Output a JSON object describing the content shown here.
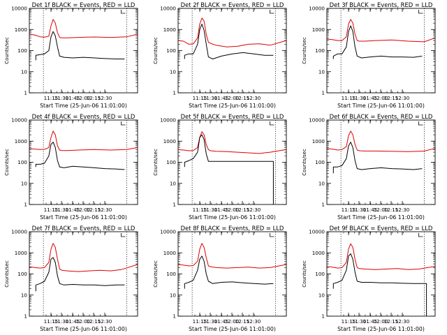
{
  "figure": {
    "background": "#ffffff",
    "line_colors": {
      "events": "#000000",
      "lld": "#dd0000"
    }
  },
  "chart_data": [
    {
      "type": "line",
      "title": "Det 1f BLACK = Events, RED = LLD",
      "xlabel": "Start Time (25-Jun-06 11:01:00)",
      "ylabel": "Counts/sec",
      "xticks": [
        "11:15",
        "11:30",
        "11:45",
        "12:00",
        "12:15",
        "12:30"
      ],
      "yticks": [
        "1",
        "10",
        "100",
        "1000",
        "10000"
      ],
      "xlim": [
        0,
        100
      ],
      "ylim": [
        1,
        10000
      ],
      "yscale": "log",
      "grid": false,
      "vlines": [
        13,
        90
      ],
      "series": [
        {
          "name": "LLD",
          "color": "#dd0000",
          "x": [
            0,
            5,
            10,
            14,
            18,
            20,
            22,
            24,
            26,
            28,
            30,
            35,
            45,
            60,
            75,
            90,
            100
          ],
          "y": [
            600,
            550,
            450,
            430,
            480,
            1500,
            3000,
            2000,
            700,
            420,
            400,
            400,
            420,
            440,
            420,
            450,
            600
          ]
        },
        {
          "name": "Events",
          "color": "#000000",
          "x": [
            6,
            6,
            10,
            14,
            18,
            20,
            22,
            24,
            26,
            28,
            32,
            40,
            50,
            60,
            70,
            80,
            88
          ],
          "y": [
            35,
            60,
            65,
            70,
            100,
            450,
            800,
            500,
            150,
            55,
            48,
            45,
            48,
            45,
            42,
            40,
            40
          ]
        }
      ]
    },
    {
      "type": "line",
      "title": "Det 2f BLACK = Events, RED = LLD",
      "xlabel": "Start Time (25-Jun-06 11:01:00)",
      "ylabel": "Counts/sec",
      "xticks": [
        "11:15",
        "11:30",
        "11:45",
        "12:00",
        "12:15",
        "12:30"
      ],
      "yticks": [
        "1",
        "10",
        "100",
        "1000",
        "10000"
      ],
      "xlim": [
        0,
        100
      ],
      "ylim": [
        1,
        10000
      ],
      "yscale": "log",
      "grid": false,
      "vlines": [
        13,
        90
      ],
      "series": [
        {
          "name": "LLD",
          "color": "#dd0000",
          "x": [
            0,
            5,
            10,
            14,
            18,
            20,
            22,
            24,
            26,
            28,
            30,
            35,
            45,
            55,
            65,
            75,
            85,
            100
          ],
          "y": [
            300,
            280,
            200,
            210,
            400,
            1800,
            3500,
            2500,
            600,
            250,
            220,
            180,
            150,
            160,
            200,
            210,
            180,
            300
          ]
        },
        {
          "name": "Events",
          "color": "#000000",
          "x": [
            6,
            6,
            10,
            14,
            18,
            20,
            22,
            24,
            26,
            28,
            32,
            40,
            50,
            60,
            70,
            80,
            88
          ],
          "y": [
            40,
            60,
            70,
            70,
            200,
            1000,
            1800,
            900,
            200,
            50,
            40,
            55,
            70,
            80,
            70,
            60,
            60
          ]
        }
      ]
    },
    {
      "type": "line",
      "title": "Det 3f BLACK = Events, RED = LLD",
      "xlabel": "Start Time (25-Jun-06 11:01:00)",
      "ylabel": "Counts/sec",
      "xticks": [
        "11:15",
        "11:30",
        "11:45",
        "12:00",
        "12:15",
        "12:30"
      ],
      "yticks": [
        "1",
        "10",
        "100",
        "1000",
        "10000"
      ],
      "xlim": [
        0,
        100
      ],
      "ylim": [
        1,
        10000
      ],
      "yscale": "log",
      "grid": false,
      "vlines": [
        13,
        90
      ],
      "series": [
        {
          "name": "LLD",
          "color": "#dd0000",
          "x": [
            0,
            5,
            10,
            14,
            18,
            20,
            22,
            24,
            26,
            28,
            30,
            35,
            45,
            60,
            75,
            90,
            100
          ],
          "y": [
            350,
            330,
            300,
            300,
            450,
            1800,
            3000,
            2000,
            600,
            300,
            280,
            280,
            300,
            320,
            280,
            260,
            400
          ]
        },
        {
          "name": "Events",
          "color": "#000000",
          "x": [
            6,
            6,
            10,
            14,
            18,
            20,
            22,
            24,
            26,
            28,
            32,
            40,
            50,
            60,
            70,
            80,
            88
          ],
          "y": [
            40,
            55,
            70,
            70,
            150,
            800,
            1500,
            800,
            150,
            55,
            45,
            50,
            55,
            50,
            50,
            48,
            55
          ]
        }
      ]
    },
    {
      "type": "line",
      "title": "Det 4f BLACK = Events, RED = LLD",
      "xlabel": "Start Time (25-Jun-06 11:01:00)",
      "ylabel": "Counts/sec",
      "xticks": [
        "11:15",
        "11:30",
        "11:45",
        "12:00",
        "12:15",
        "12:30"
      ],
      "yticks": [
        "1",
        "10",
        "100",
        "1000",
        "10000"
      ],
      "xlim": [
        0,
        100
      ],
      "ylim": [
        1,
        10000
      ],
      "yscale": "log",
      "grid": false,
      "vlines": [
        13,
        90
      ],
      "series": [
        {
          "name": "LLD",
          "color": "#dd0000",
          "x": [
            0,
            5,
            10,
            14,
            18,
            20,
            22,
            24,
            26,
            28,
            30,
            35,
            45,
            60,
            75,
            90,
            100
          ],
          "y": [
            450,
            420,
            400,
            410,
            500,
            1500,
            3000,
            2000,
            600,
            380,
            360,
            360,
            380,
            400,
            380,
            400,
            500
          ]
        },
        {
          "name": "Events",
          "color": "#000000",
          "x": [
            6,
            6,
            10,
            14,
            18,
            20,
            22,
            24,
            26,
            28,
            32,
            40,
            50,
            60,
            70,
            80,
            88
          ],
          "y": [
            60,
            80,
            80,
            90,
            200,
            700,
            900,
            500,
            120,
            60,
            55,
            65,
            60,
            55,
            50,
            48,
            45
          ]
        }
      ]
    },
    {
      "type": "line",
      "title": "Det 5f BLACK = Events, RED = LLD",
      "xlabel": "Start Time (25-Jun-06 11:01:00)",
      "ylabel": "Counts/sec",
      "xticks": [
        "11:15",
        "11:30",
        "11:45",
        "12:00",
        "12:15",
        "12:30"
      ],
      "yticks": [
        "1",
        "10",
        "100",
        "1000",
        "10000"
      ],
      "xlim": [
        0,
        100
      ],
      "ylim": [
        1,
        10000
      ],
      "yscale": "log",
      "grid": false,
      "vlines": [
        13,
        90
      ],
      "series": [
        {
          "name": "LLD",
          "color": "#dd0000",
          "x": [
            0,
            5,
            10,
            14,
            18,
            20,
            22,
            24,
            26,
            28,
            30,
            35,
            45,
            55,
            65,
            75,
            85,
            100
          ],
          "y": [
            400,
            380,
            350,
            360,
            500,
            1500,
            2800,
            2000,
            700,
            400,
            350,
            330,
            320,
            300,
            280,
            260,
            300,
            400
          ]
        },
        {
          "name": "Events",
          "color": "#000000",
          "x": [
            6,
            6,
            10,
            14,
            18,
            20,
            22,
            24,
            26,
            28,
            32,
            40,
            50,
            60,
            70,
            80,
            88,
            88
          ],
          "y": [
            60,
            100,
            120,
            150,
            300,
            1500,
            2000,
            1200,
            250,
            110,
            110,
            110,
            110,
            110,
            110,
            110,
            110,
            1
          ]
        }
      ]
    },
    {
      "type": "line",
      "title": "Det 6f BLACK = Events, RED = LLD",
      "xlabel": "Start Time (25-Jun-06 11:01:00)",
      "ylabel": "Counts/sec",
      "xticks": [
        "11:15",
        "11:30",
        "11:45",
        "12:00",
        "12:15",
        "12:30"
      ],
      "yticks": [
        "1",
        "10",
        "100",
        "1000",
        "10000"
      ],
      "xlim": [
        0,
        100
      ],
      "ylim": [
        1,
        10000
      ],
      "yscale": "log",
      "grid": false,
      "vlines": [
        13,
        90
      ],
      "series": [
        {
          "name": "LLD",
          "color": "#dd0000",
          "x": [
            0,
            5,
            10,
            14,
            18,
            20,
            22,
            24,
            26,
            28,
            30,
            35,
            45,
            60,
            75,
            90,
            100
          ],
          "y": [
            450,
            420,
            380,
            400,
            550,
            1800,
            3000,
            2000,
            700,
            380,
            350,
            340,
            340,
            330,
            320,
            340,
            450
          ]
        },
        {
          "name": "Events",
          "color": "#000000",
          "x": [
            6,
            6,
            10,
            14,
            18,
            20,
            22,
            24,
            26,
            28,
            32,
            40,
            50,
            60,
            70,
            80,
            88
          ],
          "y": [
            30,
            60,
            60,
            70,
            150,
            600,
            900,
            500,
            120,
            50,
            45,
            50,
            55,
            50,
            48,
            45,
            50
          ]
        }
      ]
    },
    {
      "type": "line",
      "title": "Det 7f BLACK = Events, RED = LLD",
      "xlabel": "Start Time (25-Jun-06 11:01:00)",
      "ylabel": "Counts/sec",
      "xticks": [
        "11:15",
        "11:30",
        "11:45",
        "12:00",
        "12:15",
        "12:30"
      ],
      "yticks": [
        "1",
        "10",
        "100",
        "1000",
        "10000"
      ],
      "xlim": [
        0,
        100
      ],
      "ylim": [
        1,
        10000
      ],
      "yscale": "log",
      "grid": false,
      "vlines": [
        13,
        90
      ],
      "series": [
        {
          "name": "LLD",
          "color": "#dd0000",
          "x": [
            0,
            5,
            10,
            14,
            18,
            20,
            22,
            24,
            26,
            28,
            30,
            35,
            45,
            55,
            65,
            75,
            85,
            100
          ],
          "y": [
            220,
            200,
            190,
            200,
            350,
            1500,
            2800,
            1800,
            500,
            170,
            150,
            140,
            130,
            140,
            150,
            140,
            160,
            280
          ]
        },
        {
          "name": "Events",
          "color": "#000000",
          "x": [
            6,
            6,
            10,
            14,
            18,
            20,
            22,
            24,
            26,
            28,
            32,
            40,
            50,
            60,
            70,
            80,
            88
          ],
          "y": [
            15,
            30,
            35,
            45,
            120,
            500,
            600,
            350,
            80,
            35,
            30,
            32,
            30,
            30,
            28,
            30,
            30
          ]
        }
      ]
    },
    {
      "type": "line",
      "title": "Det 8f BLACK = Events, RED = LLD",
      "xlabel": "Start Time (25-Jun-06 11:01:00)",
      "ylabel": "Counts/sec",
      "xticks": [
        "11:15",
        "11:30",
        "11:45",
        "12:00",
        "12:15",
        "12:30"
      ],
      "yticks": [
        "1",
        "10",
        "100",
        "1000",
        "10000"
      ],
      "xlim": [
        0,
        100
      ],
      "ylim": [
        1,
        10000
      ],
      "yscale": "log",
      "grid": false,
      "vlines": [
        13,
        90
      ],
      "series": [
        {
          "name": "LLD",
          "color": "#dd0000",
          "x": [
            0,
            5,
            10,
            14,
            18,
            20,
            22,
            24,
            26,
            28,
            30,
            35,
            45,
            55,
            65,
            75,
            85,
            100
          ],
          "y": [
            280,
            260,
            240,
            250,
            400,
            1500,
            2800,
            1800,
            600,
            240,
            220,
            200,
            190,
            200,
            210,
            190,
            200,
            280
          ]
        },
        {
          "name": "Events",
          "color": "#000000",
          "x": [
            6,
            6,
            10,
            14,
            18,
            20,
            22,
            24,
            26,
            28,
            32,
            40,
            50,
            60,
            70,
            80,
            88
          ],
          "y": [
            20,
            35,
            40,
            50,
            150,
            500,
            700,
            400,
            100,
            45,
            35,
            40,
            42,
            38,
            35,
            33,
            35
          ]
        }
      ]
    },
    {
      "type": "line",
      "title": "Det 9f BLACK = Events, RED = LLD",
      "xlabel": "Start Time (25-Jun-06 11:01:00)",
      "ylabel": "Counts/sec",
      "xticks": [
        "11:15",
        "11:30",
        "11:45",
        "12:00",
        "12:15",
        "12:30"
      ],
      "yticks": [
        "1",
        "10",
        "100",
        "1000",
        "10000"
      ],
      "xlim": [
        0,
        100
      ],
      "ylim": [
        1,
        10000
      ],
      "yscale": "log",
      "grid": false,
      "vlines": [
        13,
        90
      ],
      "series": [
        {
          "name": "LLD",
          "color": "#dd0000",
          "x": [
            0,
            5,
            10,
            14,
            18,
            20,
            22,
            24,
            26,
            28,
            30,
            35,
            45,
            55,
            65,
            75,
            85,
            100
          ],
          "y": [
            230,
            210,
            190,
            200,
            350,
            1500,
            2700,
            1800,
            500,
            200,
            180,
            170,
            160,
            170,
            180,
            160,
            170,
            230
          ]
        },
        {
          "name": "Events",
          "color": "#000000",
          "x": [
            6,
            6,
            10,
            14,
            18,
            20,
            22,
            24,
            26,
            28,
            32,
            40,
            50,
            60,
            70,
            80,
            92,
            92
          ],
          "y": [
            20,
            35,
            40,
            50,
            150,
            700,
            900,
            500,
            120,
            45,
            40,
            40,
            38,
            38,
            36,
            35,
            35,
            1
          ]
        }
      ]
    }
  ]
}
